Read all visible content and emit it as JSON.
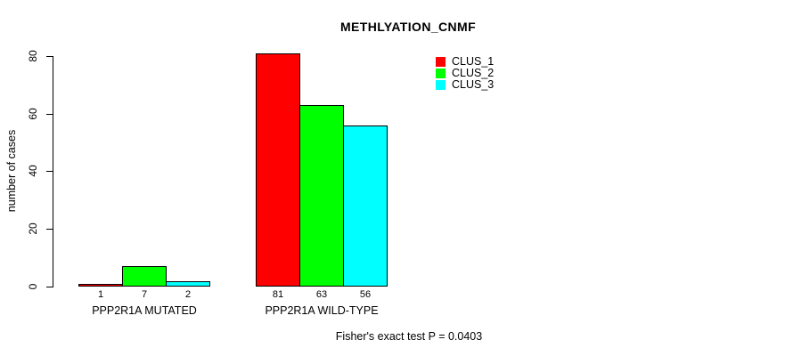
{
  "chart": {
    "title": "METHLYATION_CNMF",
    "ylabel": "number of cases",
    "footer": "Fisher's exact test P = 0.0403",
    "y_ticks": [
      0,
      20,
      40,
      60,
      80
    ],
    "axis_color": "#000000",
    "background_color": "#ffffff"
  },
  "chart_data": {
    "type": "bar",
    "title": "METHLYATION_CNMF",
    "xlabel": "",
    "ylabel": "number of cases",
    "categories": [
      "PPP2R1A MUTATED",
      "PPP2R1A WILD-TYPE"
    ],
    "series": [
      {
        "name": "CLUS_1",
        "color": "#ff0000",
        "values": [
          1,
          81
        ]
      },
      {
        "name": "CLUS_2",
        "color": "#00ff00",
        "values": [
          7,
          63
        ]
      },
      {
        "name": "CLUS_3",
        "color": "#00ffff",
        "values": [
          2,
          56
        ]
      }
    ],
    "bar_value_labels": [
      [
        1,
        7,
        2
      ],
      [
        81,
        63,
        56
      ]
    ],
    "ylim": [
      0,
      80
    ],
    "y_tick_labels": [
      "0",
      "20",
      "40",
      "60",
      "80"
    ],
    "grid": false,
    "legend_position": "top-right",
    "legend_entries": [
      "CLUS_1",
      "CLUS_2",
      "CLUS_3"
    ],
    "annotation": "Fisher's exact test P = 0.0403"
  }
}
